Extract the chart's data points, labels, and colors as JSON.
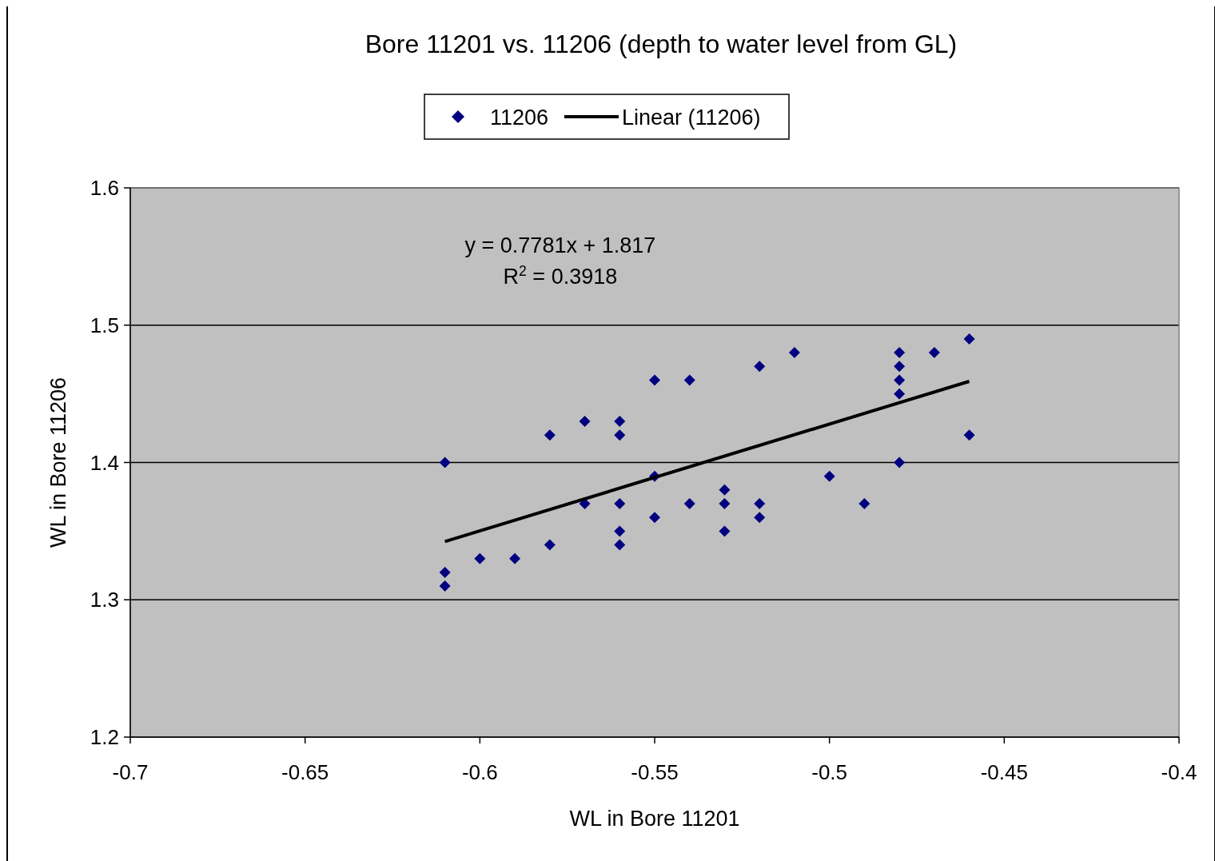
{
  "chart_data": {
    "type": "scatter",
    "title": "Bore 11201 vs. 11206 (depth to water level from GL)",
    "xlabel": "WL in Bore 11201",
    "ylabel": "WL in Bore 11206",
    "xlim": [
      -0.7,
      -0.4
    ],
    "xticks": [
      -0.7,
      -0.65,
      -0.6,
      -0.55,
      -0.5,
      -0.45,
      -0.4
    ],
    "ylim": [
      1.2,
      1.6
    ],
    "yticks": [
      1.2,
      1.3,
      1.4,
      1.5,
      1.6
    ],
    "grid": "y",
    "legend": "top",
    "annotations": [
      "y = 0.7781x + 1.817",
      "R$^{2}$ = 0.3918"
    ],
    "series": [
      {
        "name": "11206",
        "marker": "diamond",
        "color": "#000080",
        "x": [
          -0.61,
          -0.61,
          -0.61,
          -0.6,
          -0.59,
          -0.58,
          -0.58,
          -0.57,
          -0.57,
          -0.56,
          -0.56,
          -0.56,
          -0.56,
          -0.56,
          -0.55,
          -0.55,
          -0.55,
          -0.54,
          -0.54,
          -0.53,
          -0.53,
          -0.53,
          -0.52,
          -0.52,
          -0.52,
          -0.51,
          -0.5,
          -0.49,
          -0.48,
          -0.48,
          -0.48,
          -0.48,
          -0.48,
          -0.47,
          -0.46,
          -0.46
        ],
        "values": [
          1.4,
          1.32,
          1.31,
          1.33,
          1.33,
          1.42,
          1.34,
          1.43,
          1.37,
          1.43,
          1.42,
          1.37,
          1.35,
          1.34,
          1.46,
          1.39,
          1.36,
          1.46,
          1.37,
          1.38,
          1.37,
          1.35,
          1.47,
          1.37,
          1.36,
          1.48,
          1.39,
          1.37,
          1.48,
          1.47,
          1.46,
          1.45,
          1.4,
          1.48,
          1.49,
          1.42
        ]
      },
      {
        "name": "Linear (11206)",
        "type": "line",
        "marker": "none",
        "color": "#000000",
        "line_style": "solid",
        "x": [
          -0.61,
          -0.46
        ],
        "values": [
          1.3424,
          1.4591
        ]
      }
    ]
  }
}
